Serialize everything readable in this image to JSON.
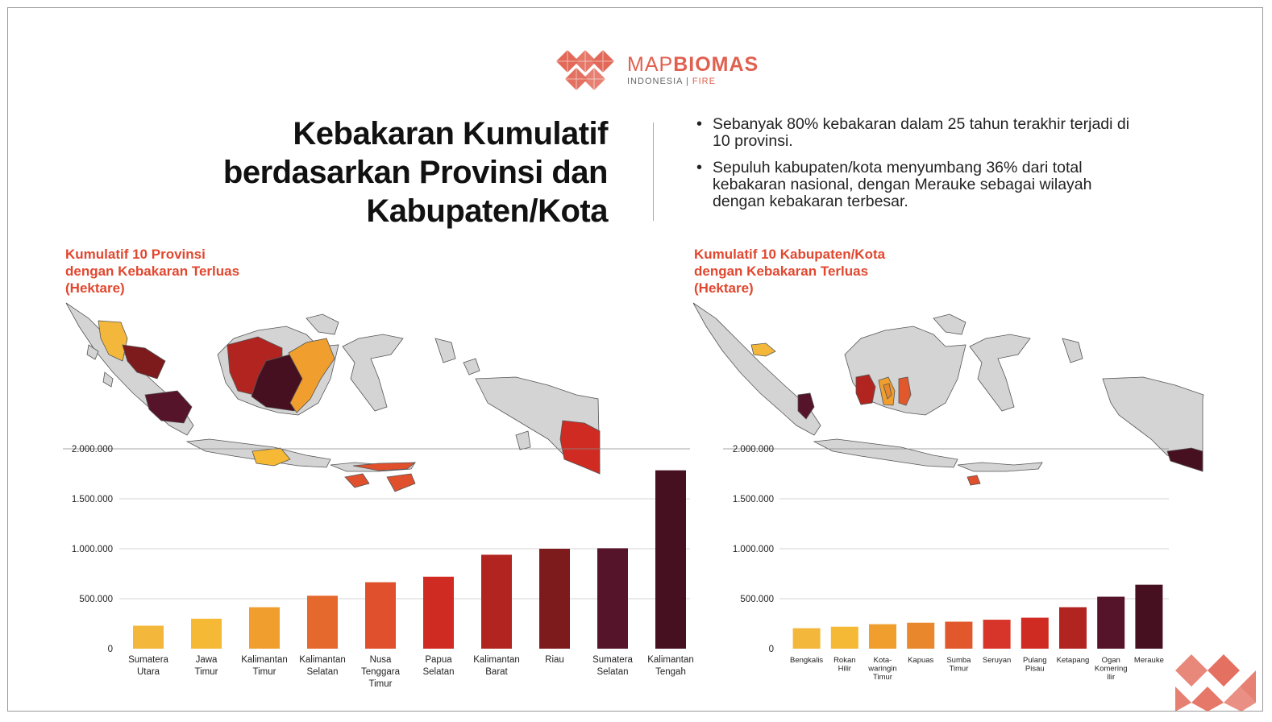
{
  "logo": {
    "name_light": "MAP",
    "name_bold": "BIOMAS",
    "sub_left": "INDONESIA",
    "sub_sep": "|",
    "sub_right": "FIRE"
  },
  "title": [
    "Kebakaran Kumulatif",
    "berdasarkan Provinsi dan",
    "Kabupaten/Kota"
  ],
  "bullets": [
    "Sebanyak 80% kebakaran dalam 25 tahun terakhir terjadi di 10 provinsi.",
    "Sepuluh kabupaten/kota menyumbang 36% dari total kebakaran nasional, dengan Merauke sebagai wilayah dengan kebakaran terbesar."
  ],
  "chart_data": [
    {
      "type": "bar",
      "title": [
        "Kumulatif 10 Provinsi",
        "dengan Kebakaran Terluas",
        "(Hektare)"
      ],
      "categories": [
        [
          "Sumatera",
          "Utara"
        ],
        [
          "Jawa",
          "Timur"
        ],
        [
          "Kalimantan",
          "Timur"
        ],
        [
          "Kalimantan",
          "Selatan"
        ],
        [
          "Nusa",
          "Tenggara",
          "Timur"
        ],
        [
          "Papua",
          "Selatan"
        ],
        [
          "Kalimantan",
          "Barat"
        ],
        [
          "Riau"
        ],
        [
          "Sumatera",
          "Selatan"
        ],
        [
          "Kalimantan",
          "Tengah"
        ]
      ],
      "values": [
        230000,
        300000,
        415000,
        530000,
        665000,
        720000,
        940000,
        1000000,
        1005000,
        1785000
      ],
      "colors": [
        "#f3b83b",
        "#f5b935",
        "#f09f2e",
        "#e5692c",
        "#e0502c",
        "#cf2b22",
        "#b2241f",
        "#7d1a1c",
        "#56142a",
        "#471020"
      ],
      "ylim": [
        0,
        2000000
      ],
      "yticks": [
        0,
        500000,
        1000000,
        1500000,
        2000000
      ],
      "ytick_labels": [
        "0",
        "500.000",
        "1.000.000",
        "1.500.000",
        "2.000.000"
      ]
    },
    {
      "type": "bar",
      "title": [
        "Kumulatif 10 Kabupaten/Kota",
        "dengan Kebakaran Terluas",
        "(Hektare)"
      ],
      "categories": [
        [
          "Bengkalis"
        ],
        [
          "Rokan",
          "Hilir"
        ],
        [
          "Kota-",
          "waringin",
          "Timur"
        ],
        [
          "Kapuas"
        ],
        [
          "Sumba",
          "Timur"
        ],
        [
          "Seruyan"
        ],
        [
          "Pulang",
          "Pisau"
        ],
        [
          "Ketapang"
        ],
        [
          "Ogan",
          "Komering",
          "Ilir"
        ],
        [
          "Merauke"
        ]
      ],
      "values": [
        205000,
        220000,
        245000,
        260000,
        270000,
        290000,
        310000,
        415000,
        520000,
        640000
      ],
      "colors": [
        "#f3b83b",
        "#f5b935",
        "#f09f2e",
        "#e8872c",
        "#e0582c",
        "#d8352a",
        "#cf2b22",
        "#b2241f",
        "#56142a",
        "#471020"
      ],
      "ylim": [
        0,
        2000000
      ],
      "yticks": [
        0,
        500000,
        1000000,
        1500000,
        2000000
      ],
      "ytick_labels": [
        "0",
        "500.000",
        "1.000.000",
        "1.500.000",
        "2.000.000"
      ]
    }
  ]
}
